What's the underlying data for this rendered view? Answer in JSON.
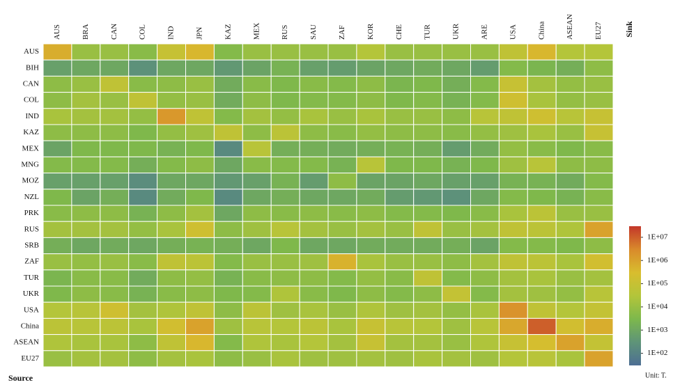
{
  "chart_data": {
    "type": "heatmap",
    "x_label": "Sink",
    "y_label": "Source",
    "unit": "Unit: T.",
    "log_scale": true,
    "columns": [
      "AUS",
      "BRA",
      "CAN",
      "COL",
      "IND",
      "JPN",
      "KAZ",
      "MEX",
      "RUS",
      "SAU",
      "ZAF",
      "KOR",
      "CHE",
      "TUR",
      "UKR",
      "ARE",
      "USA",
      "China",
      "ASEAN",
      "EU27"
    ],
    "rows": [
      "AUS",
      "BIH",
      "CAN",
      "COL",
      "IND",
      "KAZ",
      "MEX",
      "MNG",
      "MOZ",
      "NZL",
      "PRK",
      "RUS",
      "SRB",
      "ZAF",
      "TUR",
      "UKR",
      "USA",
      "China",
      "ASEAN",
      "EU27"
    ],
    "values": [
      [
        630000.0,
        10000.0,
        10000.0,
        5000.0,
        100000.0,
        400000.0,
        4000.0,
        10000.0,
        10000.0,
        10000.0,
        10000.0,
        32000.0,
        10000.0,
        10000.0,
        10000.0,
        10000.0,
        63000.0,
        400000.0,
        32000.0,
        32000.0
      ],
      [
        630.0,
        1000.0,
        1000.0,
        250.0,
        1000.0,
        1000.0,
        400.0,
        800.0,
        2000.0,
        630.0,
        500.0,
        800.0,
        1000.0,
        1300.0,
        1000.0,
        500.0,
        4000.0,
        2500.0,
        1600.0,
        6300.0
      ],
      [
        6300.0,
        10000.0,
        63000.0,
        5000.0,
        6300.0,
        10000.0,
        1300.0,
        5000.0,
        3200.0,
        5000.0,
        4000.0,
        6300.0,
        2500.0,
        3200.0,
        1600.0,
        4000.0,
        100000.0,
        16000.0,
        8000.0,
        10000.0
      ],
      [
        6300.0,
        16000.0,
        10000.0,
        63000.0,
        8000.0,
        10000.0,
        1300.0,
        6300.0,
        3200.0,
        4000.0,
        4000.0,
        6300.0,
        3200.0,
        4000.0,
        2000.0,
        4000.0,
        160000.0,
        20000.0,
        8000.0,
        10000.0
      ],
      [
        20000.0,
        16000.0,
        16000.0,
        8000.0,
        1600000.0,
        63000.0,
        4000.0,
        16000.0,
        8000.0,
        20000.0,
        10000.0,
        20000.0,
        10000.0,
        10000.0,
        6300.0,
        40000.0,
        63000.0,
        160000.0,
        40000.0,
        100000.0
      ],
      [
        6300.0,
        6300.0,
        6300.0,
        3200.0,
        8000.0,
        13000.0,
        63000.0,
        6300.0,
        50000.0,
        6300.0,
        5000.0,
        8000.0,
        6300.0,
        6300.0,
        5000.0,
        8000.0,
        13000.0,
        20000.0,
        10000.0,
        100000.0
      ],
      [
        800.0,
        3200.0,
        3200.0,
        3200.0,
        2000.0,
        3200.0,
        160.0,
        40000.0,
        1600.0,
        1600.0,
        1300.0,
        1600.0,
        2000.0,
        1600.0,
        500.0,
        1300.0,
        8000.0,
        5000.0,
        3200.0,
        5000.0
      ],
      [
        4000.0,
        4000.0,
        4000.0,
        1600.0,
        4000.0,
        6300.0,
        1000.0,
        5000.0,
        4000.0,
        4000.0,
        2000.0,
        40000.0,
        3200.0,
        3200.0,
        2000.0,
        3200.0,
        13000.0,
        40000.0,
        6300.0,
        6300.0
      ],
      [
        630.0,
        630.0,
        630.0,
        200.0,
        1000.0,
        1000.0,
        400.0,
        630.0,
        2000.0,
        500.0,
        6300.0,
        800.0,
        800.0,
        1000.0,
        630.0,
        630.0,
        2000.0,
        2000.0,
        1300.0,
        4000.0
      ],
      [
        3200.0,
        800.0,
        1600.0,
        160.0,
        1300.0,
        3200.0,
        160.0,
        1000.0,
        1600.0,
        1000.0,
        1000.0,
        1300.0,
        500.0,
        400.0,
        250.0,
        1000.0,
        4000.0,
        3200.0,
        2000.0,
        5000.0
      ],
      [
        5000.0,
        6300.0,
        6300.0,
        2000.0,
        6300.0,
        16000.0,
        1000.0,
        6300.0,
        5000.0,
        6300.0,
        5000.0,
        6300.0,
        4000.0,
        4000.0,
        3200.0,
        5000.0,
        20000.0,
        50000.0,
        10000.0,
        10000.0
      ],
      [
        16000.0,
        16000.0,
        16000.0,
        8000.0,
        20000.0,
        160000.0,
        6300.0,
        13000.0,
        40000.0,
        16000.0,
        10000.0,
        16000.0,
        10000.0,
        63000.0,
        10000.0,
        16000.0,
        63000.0,
        50000.0,
        25000.0,
        1000000.0
      ],
      [
        1600.0,
        1000.0,
        1300.0,
        1000.0,
        1600.0,
        2000.0,
        1600.0,
        1000.0,
        3200.0,
        1000.0,
        1000.0,
        1300.0,
        1300.0,
        1300.0,
        1600.0,
        800.0,
        4000.0,
        4000.0,
        3200.0,
        6300.0
      ],
      [
        10000.0,
        8000.0,
        10000.0,
        5000.0,
        63000.0,
        50000.0,
        4000.0,
        10000.0,
        10000.0,
        13000.0,
        500000.0,
        20000.0,
        10000.0,
        10000.0,
        6300.0,
        16000.0,
        63000.0,
        50000.0,
        20000.0,
        200000.0
      ],
      [
        2500.0,
        5000.0,
        5000.0,
        1300.0,
        6300.0,
        8000.0,
        2000.0,
        5000.0,
        6300.0,
        6300.0,
        4000.0,
        8000.0,
        5000.0,
        63000.0,
        4000.0,
        6300.0,
        16000.0,
        20000.0,
        10000.0,
        16000.0
      ],
      [
        3200.0,
        6300.0,
        5000.0,
        2000.0,
        5000.0,
        6300.0,
        3200.0,
        4000.0,
        25000.0,
        5000.0,
        3200.0,
        6300.0,
        4000.0,
        6300.0,
        80000.0,
        4000.0,
        16000.0,
        13000.0,
        8000.0,
        40000.0
      ],
      [
        32000.0,
        40000.0,
        160000.0,
        16000.0,
        25000.0,
        63000.0,
        6300.0,
        50000.0,
        13000.0,
        20000.0,
        10000.0,
        25000.0,
        13000.0,
        16000.0,
        8000.0,
        20000.0,
        2000000.0,
        63000.0,
        32000.0,
        80000.0
      ],
      [
        50000.0,
        40000.0,
        50000.0,
        20000.0,
        200000.0,
        1000000.0,
        13000.0,
        40000.0,
        32000.0,
        50000.0,
        20000.0,
        100000.0,
        40000.0,
        32000.0,
        13000.0,
        40000.0,
        800000.0,
        10000000.0,
        200000.0,
        630000.0
      ],
      [
        25000.0,
        20000.0,
        20000.0,
        6300.0,
        63000.0,
        400000.0,
        4000.0,
        25000.0,
        20000.0,
        32000.0,
        16000.0,
        100000.0,
        16000.0,
        16000.0,
        10000.0,
        25000.0,
        100000.0,
        250000.0,
        1000000.0,
        80000.0
      ],
      [
        10000.0,
        16000.0,
        16000.0,
        6300.0,
        16000.0,
        20000.0,
        6300.0,
        10000.0,
        20000.0,
        13000.0,
        13000.0,
        16000.0,
        13000.0,
        20000.0,
        16000.0,
        13000.0,
        32000.0,
        40000.0,
        20000.0,
        1000000.0
      ]
    ],
    "colorscale": [
      "#4d6e93",
      "#5e9478",
      "#7db84c",
      "#b3c53a",
      "#d8bd2e",
      "#d98a2b",
      "#c3372a"
    ],
    "clim": [
      30,
      30000000
    ],
    "cticks": [
      {
        "value": 100,
        "label": "1E+02"
      },
      {
        "value": 1000,
        "label": "1E+03"
      },
      {
        "value": 10000,
        "label": "1E+04"
      },
      {
        "value": 100000,
        "label": "1E+05"
      },
      {
        "value": 1000000,
        "label": "1E+06"
      },
      {
        "value": 10000000,
        "label": "1E+07"
      }
    ]
  }
}
